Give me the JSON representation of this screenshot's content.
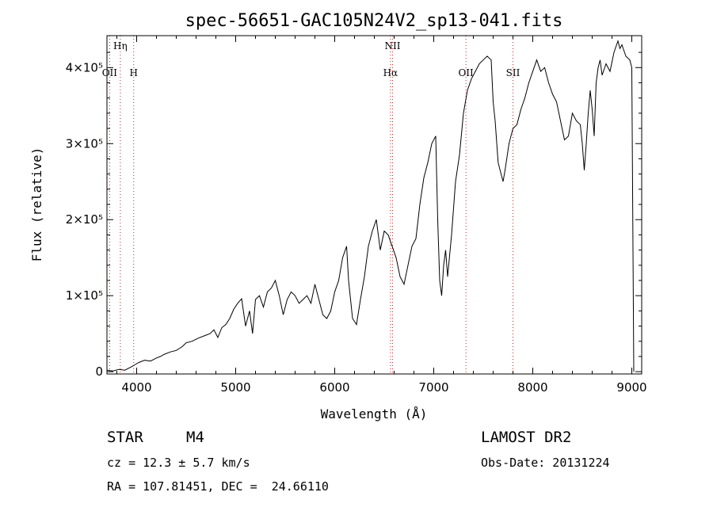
{
  "chart_data": {
    "type": "line",
    "title": "spec-56651-GAC105N24V2_sp13-041.fits",
    "xlabel": "Wavelength (Å)",
    "ylabel": "Flux (relative)",
    "xlim": [
      3700,
      9100
    ],
    "ylim": [
      -3000,
      442000
    ],
    "xticks": [
      4000,
      5000,
      6000,
      7000,
      8000,
      9000
    ],
    "yticks": [
      {
        "value": 0,
        "label": "0"
      },
      {
        "value": 100000,
        "label": "1×10⁵"
      },
      {
        "value": 200000,
        "label": "2×10⁵"
      },
      {
        "value": 300000,
        "label": "3×10⁵"
      },
      {
        "value": 400000,
        "label": "4×10⁵"
      }
    ],
    "series": [
      {
        "x": [
          3700,
          3760,
          3820,
          3880,
          3940,
          3980,
          4020,
          4080,
          4140,
          4200,
          4240,
          4280,
          4340,
          4400,
          4460,
          4500,
          4560,
          4620,
          4680,
          4740,
          4780,
          4820,
          4860,
          4900,
          4940,
          4980,
          5020,
          5060,
          5100,
          5140,
          5170,
          5200,
          5240,
          5280,
          5320,
          5360,
          5400,
          5440,
          5480,
          5520,
          5560,
          5600,
          5640,
          5680,
          5720,
          5760,
          5800,
          5840,
          5880,
          5920,
          5960,
          6000,
          6040,
          6080,
          6120,
          6140,
          6180,
          6220,
          6260,
          6300,
          6340,
          6380,
          6420,
          6460,
          6500,
          6540,
          6580,
          6620,
          6660,
          6700,
          6740,
          6780,
          6820,
          6860,
          6900,
          6940,
          6980,
          7020,
          7040,
          7060,
          7080,
          7100,
          7120,
          7140,
          7180,
          7220,
          7260,
          7300,
          7340,
          7380,
          7420,
          7460,
          7500,
          7540,
          7580,
          7600,
          7620,
          7650,
          7680,
          7700,
          7720,
          7760,
          7800,
          7840,
          7880,
          7920,
          7960,
          8000,
          8040,
          8080,
          8120,
          8160,
          8200,
          8240,
          8280,
          8320,
          8360,
          8400,
          8440,
          8480,
          8500,
          8520,
          8540,
          8560,
          8580,
          8600,
          8620,
          8640,
          8660,
          8680,
          8700,
          8740,
          8780,
          8820,
          8860,
          8880,
          8900,
          8940,
          8980,
          9000,
          9020
        ],
        "y": [
          2000,
          1000,
          3000,
          2000,
          6000,
          9000,
          12000,
          15000,
          14000,
          18000,
          20000,
          23000,
          26000,
          28000,
          33000,
          38000,
          40000,
          44000,
          47000,
          50000,
          55000,
          45000,
          58000,
          62000,
          70000,
          82000,
          90000,
          96000,
          60000,
          80000,
          50000,
          95000,
          100000,
          85000,
          105000,
          110000,
          120000,
          100000,
          75000,
          95000,
          105000,
          100000,
          90000,
          95000,
          100000,
          90000,
          115000,
          95000,
          75000,
          70000,
          80000,
          105000,
          120000,
          150000,
          165000,
          120000,
          70000,
          62000,
          95000,
          125000,
          165000,
          185000,
          200000,
          160000,
          185000,
          180000,
          165000,
          150000,
          125000,
          115000,
          140000,
          165000,
          175000,
          220000,
          255000,
          275000,
          300000,
          310000,
          200000,
          120000,
          100000,
          140000,
          160000,
          125000,
          180000,
          250000,
          285000,
          340000,
          370000,
          385000,
          395000,
          405000,
          410000,
          415000,
          410000,
          355000,
          330000,
          275000,
          260000,
          250000,
          265000,
          300000,
          320000,
          325000,
          345000,
          360000,
          380000,
          395000,
          410000,
          395000,
          400000,
          380000,
          365000,
          355000,
          330000,
          305000,
          310000,
          340000,
          330000,
          325000,
          300000,
          265000,
          300000,
          340000,
          370000,
          345000,
          310000,
          380000,
          400000,
          410000,
          390000,
          405000,
          395000,
          420000,
          435000,
          425000,
          430000,
          415000,
          410000,
          400000,
          0
        ]
      }
    ],
    "emission_lines": [
      {
        "label": "Hη",
        "x": 3835,
        "row": 0
      },
      {
        "label": "OII",
        "x": 3727,
        "row": 1
      },
      {
        "label": "H",
        "x": 3970,
        "row": 1
      },
      {
        "label": "NII",
        "x": 6584,
        "row": 0
      },
      {
        "label": "Hα",
        "x": 6563,
        "row": 1
      },
      {
        "label": "OII",
        "x": 7325,
        "row": 1
      },
      {
        "label": "SII",
        "x": 7800,
        "row": 1
      }
    ]
  },
  "info": {
    "class": "STAR",
    "subclass": "M4",
    "cz": "cz = 12.3 ± 5.7 km/s",
    "coords": "RA = 107.81451, DEC =  24.66110",
    "survey": "LAMOST DR2",
    "obs_date": "Obs-Date: 20131224"
  }
}
